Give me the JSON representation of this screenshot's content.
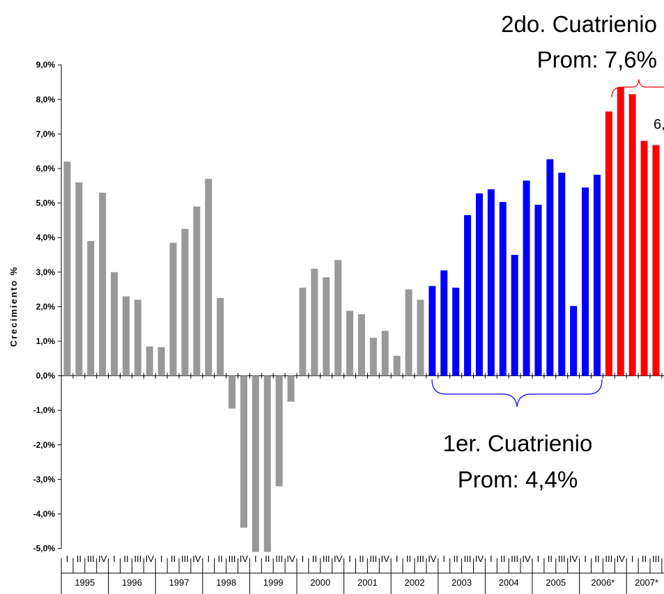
{
  "chart_data": {
    "type": "bar",
    "title": "",
    "ylabel": "Crecimiento %",
    "ylim": [
      -5,
      9
    ],
    "yticks": [
      "-5,0%",
      "-4,0%",
      "-3,0%",
      "-2,0%",
      "-1,0%",
      "0,0%",
      "1,0%",
      "2,0%",
      "3,0%",
      "4,0%",
      "5,0%",
      "6,0%",
      "7,0%",
      "8,0%",
      "9,0%"
    ],
    "quarter_labels": [
      "I",
      "II",
      "III",
      "IV"
    ],
    "years": [
      "1995",
      "1996",
      "1997",
      "1998",
      "1999",
      "2000",
      "2001",
      "2002",
      "2003",
      "2004",
      "2005",
      "2006*",
      "2007*"
    ],
    "series": [
      {
        "values": [
          6.2,
          5.6,
          3.9,
          5.3,
          3.0,
          2.3,
          2.2,
          0.85,
          0.83,
          3.85,
          4.25,
          4.9,
          5.7,
          2.25,
          -0.95,
          -4.4,
          -5.1,
          -5.1,
          -3.2,
          -0.75,
          2.55,
          3.1,
          2.85,
          3.35,
          1.88,
          1.78,
          1.1,
          1.3,
          0.58,
          2.5,
          2.2,
          2.6,
          3.05,
          2.55,
          4.65,
          5.28,
          5.4,
          5.03,
          3.5,
          5.65,
          4.95,
          6.27,
          5.88,
          2.02,
          5.45,
          5.82,
          7.65,
          8.35,
          8.15,
          6.8,
          6.68
        ],
        "colors": [
          "#999999",
          "#999999",
          "#999999",
          "#999999",
          "#999999",
          "#999999",
          "#999999",
          "#999999",
          "#999999",
          "#999999",
          "#999999",
          "#999999",
          "#999999",
          "#999999",
          "#999999",
          "#999999",
          "#999999",
          "#999999",
          "#999999",
          "#999999",
          "#999999",
          "#999999",
          "#999999",
          "#999999",
          "#999999",
          "#999999",
          "#999999",
          "#999999",
          "#999999",
          "#999999",
          "#999999",
          "#0000ff",
          "#0000ff",
          "#0000ff",
          "#0000ff",
          "#0000ff",
          "#0000ff",
          "#0000ff",
          "#0000ff",
          "#0000ff",
          "#0000ff",
          "#0000ff",
          "#0000ff",
          "#0000ff",
          "#0000ff",
          "#0000ff",
          "#ff0000",
          "#ff0000",
          "#ff0000",
          "#ff0000",
          "#ff0000"
        ]
      }
    ],
    "annotations": {
      "first_term_line1": "1er. Cuatrienio",
      "first_term_line2": "Prom: 4,4%",
      "second_term_line1": "2do. Cuatrienio",
      "second_term_line2": "Prom: 7,6%",
      "partial_label": "6,"
    },
    "colors": {
      "gray": "#999999",
      "blue": "#0000ff",
      "red": "#ff0000"
    }
  }
}
